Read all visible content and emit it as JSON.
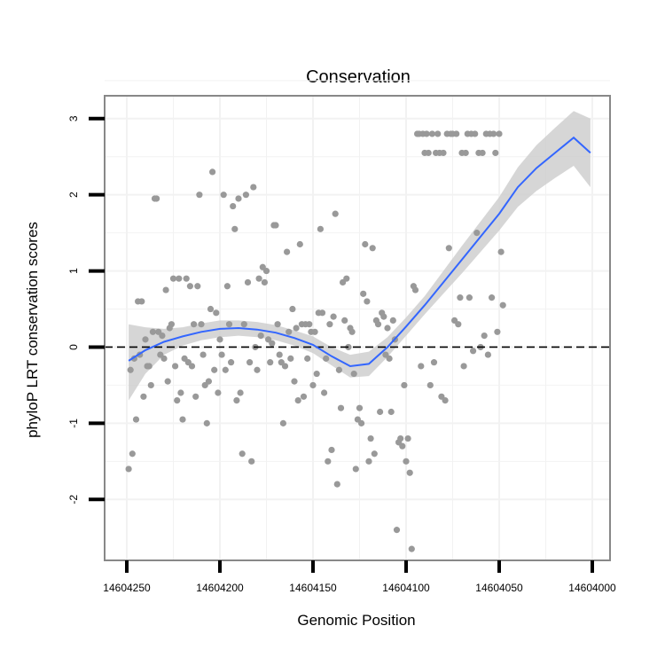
{
  "chart_data": {
    "type": "scatter",
    "title": "Conservation",
    "xlabel": "Genomic Position",
    "ylabel": "phyloP LRT conservation scores",
    "x_reversed": true,
    "xlim": [
      14604000,
      14604250
    ],
    "ylim": [
      -2.8,
      3.3
    ],
    "x_ticks": [
      14604250,
      14604200,
      14604150,
      14604100,
      14604050,
      14604000
    ],
    "x_tick_labels": [
      "14604250",
      "14604200",
      "14604150",
      "14604100",
      "14604050",
      "14604000"
    ],
    "y_ticks": [
      -2,
      -1,
      0,
      1,
      2,
      3
    ],
    "y_tick_labels": [
      "-2",
      "-1",
      "0",
      "1",
      "2",
      "3"
    ],
    "reference_line": {
      "y": 0,
      "style": "dashed"
    },
    "colors": {
      "points": "#999999",
      "smooth": "#3366ff",
      "band": "#cccccc",
      "panel": "#ffffff",
      "grid": "#f2f2f2",
      "border": "#888888"
    },
    "points": [
      [
        14604249,
        -1.6
      ],
      [
        14604248,
        -0.3
      ],
      [
        14604247,
        -1.4
      ],
      [
        14604246,
        -0.15
      ],
      [
        14604245,
        -0.95
      ],
      [
        14604244,
        0.6
      ],
      [
        14604243,
        -0.1
      ],
      [
        14604242,
        0.6
      ],
      [
        14604241,
        -0.65
      ],
      [
        14604240,
        0.1
      ],
      [
        14604239,
        -0.25
      ],
      [
        14604238,
        -0.25
      ],
      [
        14604237,
        -0.5
      ],
      [
        14604236,
        0.2
      ],
      [
        14604235,
        1.95
      ],
      [
        14604234,
        1.95
      ],
      [
        14604233,
        0.2
      ],
      [
        14604232,
        -0.1
      ],
      [
        14604231,
        0.15
      ],
      [
        14604230,
        -0.15
      ],
      [
        14604229,
        0.75
      ],
      [
        14604228,
        -0.45
      ],
      [
        14604227,
        0.25
      ],
      [
        14604226,
        0.3
      ],
      [
        14604225,
        0.9
      ],
      [
        14604224,
        -0.25
      ],
      [
        14604223,
        -0.7
      ],
      [
        14604222,
        0.9
      ],
      [
        14604221,
        -0.6
      ],
      [
        14604220,
        -0.95
      ],
      [
        14604219,
        -0.15
      ],
      [
        14604218,
        0.9
      ],
      [
        14604217,
        -0.2
      ],
      [
        14604216,
        0.8
      ],
      [
        14604215,
        -0.25
      ],
      [
        14604214,
        0.3
      ],
      [
        14604213,
        -0.65
      ],
      [
        14604212,
        0.8
      ],
      [
        14604211,
        2.0
      ],
      [
        14604210,
        0.3
      ],
      [
        14604209,
        -0.1
      ],
      [
        14604208,
        -0.5
      ],
      [
        14604207,
        -1.0
      ],
      [
        14604206,
        -0.45
      ],
      [
        14604205,
        0.5
      ],
      [
        14604204,
        2.3
      ],
      [
        14604203,
        -0.3
      ],
      [
        14604202,
        0.45
      ],
      [
        14604201,
        -0.6
      ],
      [
        14604200,
        0.1
      ],
      [
        14604199,
        -0.1
      ],
      [
        14604198,
        2.0
      ],
      [
        14604197,
        -0.3
      ],
      [
        14604196,
        0.8
      ],
      [
        14604195,
        0.3
      ],
      [
        14604194,
        -0.2
      ],
      [
        14604193,
        1.85
      ],
      [
        14604192,
        1.55
      ],
      [
        14604191,
        -0.7
      ],
      [
        14604190,
        1.95
      ],
      [
        14604189,
        -0.6
      ],
      [
        14604188,
        -1.4
      ],
      [
        14604187,
        0.3
      ],
      [
        14604186,
        2.0
      ],
      [
        14604185,
        0.85
      ],
      [
        14604184,
        -0.2
      ],
      [
        14604183,
        -1.5
      ],
      [
        14604182,
        2.1
      ],
      [
        14604181,
        0.0
      ],
      [
        14604180,
        -0.3
      ],
      [
        14604179,
        0.9
      ],
      [
        14604178,
        0.15
      ],
      [
        14604177,
        1.05
      ],
      [
        14604176,
        0.85
      ],
      [
        14604175,
        1.0
      ],
      [
        14604174,
        0.1
      ],
      [
        14604173,
        -0.2
      ],
      [
        14604172,
        0.05
      ],
      [
        14604171,
        1.6
      ],
      [
        14604170,
        1.6
      ],
      [
        14604169,
        0.3
      ],
      [
        14604168,
        -0.1
      ],
      [
        14604167,
        -0.2
      ],
      [
        14604166,
        -1.0
      ],
      [
        14604165,
        -0.25
      ],
      [
        14604164,
        1.25
      ],
      [
        14604163,
        0.2
      ],
      [
        14604162,
        -0.15
      ],
      [
        14604161,
        0.5
      ],
      [
        14604160,
        -0.45
      ],
      [
        14604159,
        0.25
      ],
      [
        14604158,
        -0.7
      ],
      [
        14604157,
        1.35
      ],
      [
        14604156,
        0.3
      ],
      [
        14604155,
        -0.65
      ],
      [
        14604154,
        0.3
      ],
      [
        14604153,
        -0.15
      ],
      [
        14604152,
        0.3
      ],
      [
        14604151,
        0.2
      ],
      [
        14604150,
        -0.5
      ],
      [
        14604149,
        0.2
      ],
      [
        14604148,
        -0.35
      ],
      [
        14604147,
        0.45
      ],
      [
        14604146,
        1.55
      ],
      [
        14604145,
        0.45
      ],
      [
        14604144,
        -0.6
      ],
      [
        14604143,
        -0.15
      ],
      [
        14604142,
        -1.5
      ],
      [
        14604141,
        0.3
      ],
      [
        14604140,
        -1.35
      ],
      [
        14604139,
        0.4
      ],
      [
        14604138,
        1.75
      ],
      [
        14604137,
        -1.8
      ],
      [
        14604136,
        -0.3
      ],
      [
        14604135,
        -0.8
      ],
      [
        14604134,
        0.85
      ],
      [
        14604133,
        0.35
      ],
      [
        14604132,
        0.9
      ],
      [
        14604131,
        0.0
      ],
      [
        14604130,
        0.25
      ],
      [
        14604129,
        0.2
      ],
      [
        14604128,
        -0.35
      ],
      [
        14604127,
        -1.6
      ],
      [
        14604126,
        -0.95
      ],
      [
        14604125,
        -0.8
      ],
      [
        14604124,
        -1.0
      ],
      [
        14604123,
        0.7
      ],
      [
        14604122,
        1.35
      ],
      [
        14604121,
        0.6
      ],
      [
        14604120,
        -1.5
      ],
      [
        14604119,
        -1.2
      ],
      [
        14604118,
        1.3
      ],
      [
        14604117,
        -1.4
      ],
      [
        14604116,
        0.35
      ],
      [
        14604115,
        0.3
      ],
      [
        14604114,
        -0.85
      ],
      [
        14604113,
        0.45
      ],
      [
        14604112,
        0.4
      ],
      [
        14604111,
        -0.1
      ],
      [
        14604110,
        0.25
      ],
      [
        14604109,
        -0.15
      ],
      [
        14604108,
        -0.85
      ],
      [
        14604107,
        0.35
      ],
      [
        14604106,
        0.1
      ],
      [
        14604105,
        -2.4
      ],
      [
        14604104,
        -1.25
      ],
      [
        14604103,
        -1.2
      ],
      [
        14604102,
        -1.3
      ],
      [
        14604101,
        -0.5
      ],
      [
        14604100,
        -1.5
      ],
      [
        14604099,
        -1.2
      ],
      [
        14604098,
        -1.65
      ],
      [
        14604097,
        -2.65
      ],
      [
        14604096,
        0.8
      ],
      [
        14604095,
        0.75
      ],
      [
        14604094,
        2.8
      ],
      [
        14604093,
        2.8
      ],
      [
        14604092,
        -0.25
      ],
      [
        14604091,
        2.8
      ],
      [
        14604090,
        2.55
      ],
      [
        14604089,
        2.8
      ],
      [
        14604088,
        2.55
      ],
      [
        14604087,
        -0.5
      ],
      [
        14604086,
        2.8
      ],
      [
        14604085,
        -0.2
      ],
      [
        14604084,
        2.55
      ],
      [
        14604083,
        2.8
      ],
      [
        14604082,
        2.55
      ],
      [
        14604081,
        -0.65
      ],
      [
        14604080,
        2.55
      ],
      [
        14604079,
        -0.7
      ],
      [
        14604078,
        2.8
      ],
      [
        14604077,
        1.3
      ],
      [
        14604076,
        2.8
      ],
      [
        14604075,
        2.8
      ],
      [
        14604074,
        0.35
      ],
      [
        14604073,
        2.8
      ],
      [
        14604072,
        0.3
      ],
      [
        14604071,
        0.65
      ],
      [
        14604070,
        2.55
      ],
      [
        14604069,
        -0.25
      ],
      [
        14604068,
        2.55
      ],
      [
        14604067,
        2.8
      ],
      [
        14604066,
        0.65
      ],
      [
        14604065,
        2.8
      ],
      [
        14604064,
        -0.05
      ],
      [
        14604063,
        2.8
      ],
      [
        14604062,
        1.5
      ],
      [
        14604061,
        2.55
      ],
      [
        14604060,
        0.0
      ],
      [
        14604059,
        2.55
      ],
      [
        14604058,
        0.15
      ],
      [
        14604057,
        2.8
      ],
      [
        14604056,
        -0.1
      ],
      [
        14604055,
        2.8
      ],
      [
        14604054,
        0.65
      ],
      [
        14604053,
        2.8
      ],
      [
        14604052,
        2.55
      ],
      [
        14604051,
        0.2
      ],
      [
        14604050,
        2.8
      ],
      [
        14604049,
        1.25
      ],
      [
        14604048,
        0.55
      ]
    ],
    "smooth": {
      "x": [
        14604249,
        14604240,
        14604230,
        14604220,
        14604210,
        14604200,
        14604190,
        14604180,
        14604170,
        14604160,
        14604150,
        14604140,
        14604130,
        14604120,
        14604110,
        14604100,
        14604090,
        14604080,
        14604070,
        14604060,
        14604050,
        14604040,
        14604030,
        14604020,
        14604010,
        14604001
      ],
      "y": [
        -0.18,
        -0.04,
        0.07,
        0.14,
        0.2,
        0.24,
        0.25,
        0.23,
        0.19,
        0.12,
        0.03,
        -0.12,
        -0.25,
        -0.22,
        0.0,
        0.27,
        0.55,
        0.85,
        1.15,
        1.45,
        1.75,
        2.1,
        2.35,
        2.55,
        2.75,
        2.55
      ],
      "lower": [
        -0.7,
        -0.35,
        -0.1,
        0.02,
        0.09,
        0.13,
        0.15,
        0.13,
        0.09,
        0.02,
        -0.08,
        -0.24,
        -0.4,
        -0.38,
        -0.13,
        0.15,
        0.43,
        0.7,
        0.97,
        1.25,
        1.53,
        1.84,
        2.05,
        2.22,
        2.38,
        2.1
      ],
      "upper": [
        0.3,
        0.26,
        0.24,
        0.26,
        0.31,
        0.35,
        0.35,
        0.33,
        0.29,
        0.22,
        0.14,
        -0.0,
        -0.1,
        -0.06,
        0.13,
        0.39,
        0.67,
        1.0,
        1.33,
        1.65,
        1.97,
        2.36,
        2.65,
        2.88,
        3.1,
        3.0
      ]
    }
  }
}
